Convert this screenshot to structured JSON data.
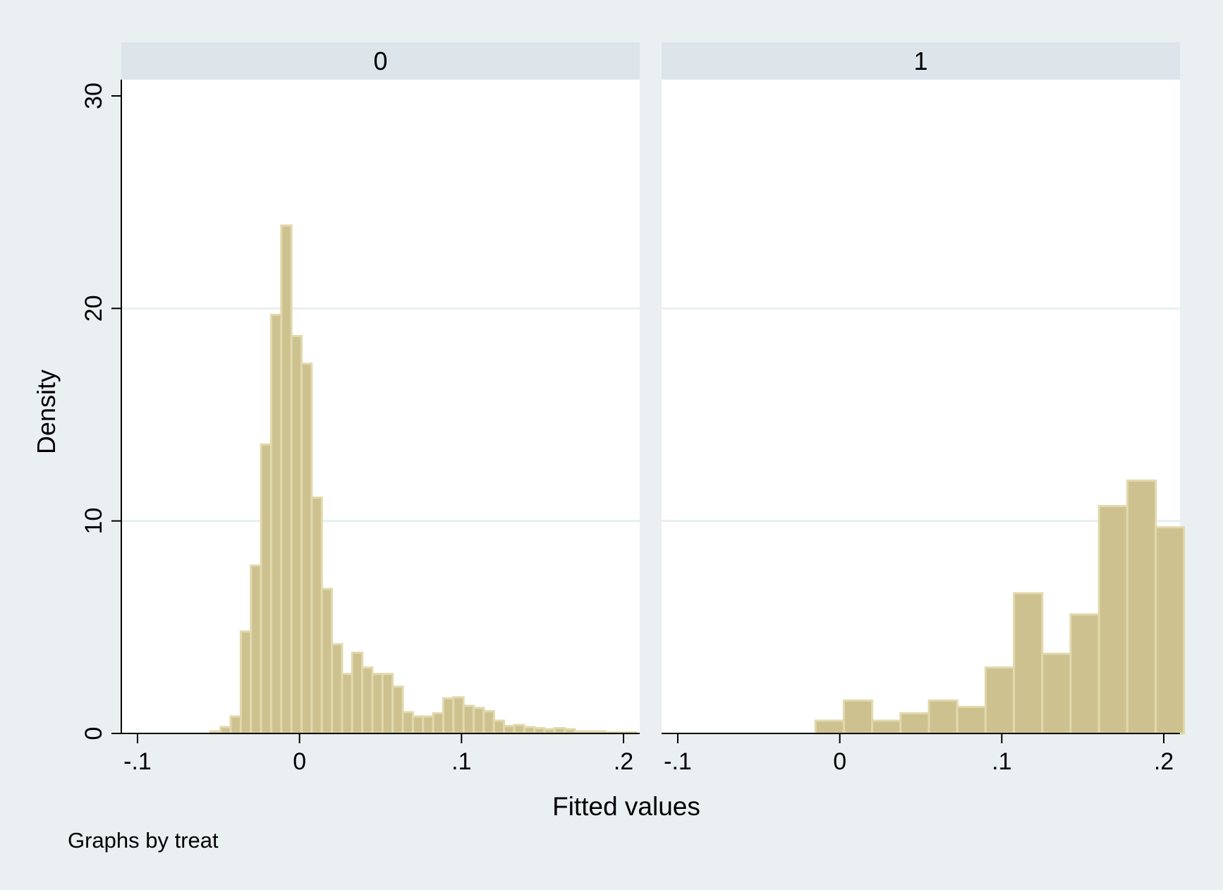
{
  "chart_data": {
    "type": "bar",
    "kind": "histogram",
    "by_variable_note": "Graphs by treat",
    "ylabel": "Density",
    "xlabel": "Fitted values",
    "ylim": [
      0,
      30
    ],
    "yticks": [
      0,
      10,
      20,
      30
    ],
    "ytick_labels": [
      "0",
      "10",
      "20",
      "30"
    ],
    "xlim": [
      -0.11,
      0.21
    ],
    "xticks": [
      -0.1,
      0,
      0.1,
      0.2
    ],
    "xtick_labels": [
      "-.1",
      "0",
      ".1",
      ".2"
    ],
    "grid": "horizontal",
    "bar_color": "#cdc28f",
    "bar_edge_color": "#e1d9ad",
    "panels": [
      {
        "title": "0",
        "bin_start": -0.055,
        "bin_width": 0.00625,
        "values": [
          0.1,
          0.3,
          0.8,
          4.8,
          7.9,
          13.6,
          19.7,
          23.9,
          18.7,
          17.4,
          11.1,
          6.8,
          4.2,
          2.8,
          3.8,
          3.1,
          2.8,
          2.8,
          2.2,
          1.0,
          0.8,
          0.8,
          0.95,
          1.65,
          1.7,
          1.3,
          1.2,
          1.05,
          0.6,
          0.35,
          0.4,
          0.3,
          0.25,
          0.2,
          0.25,
          0.2,
          0.1,
          0.1,
          0.1,
          0.05,
          0.05,
          0.05
        ]
      },
      {
        "title": "1",
        "bin_start": -0.015,
        "bin_width": 0.0175,
        "values": [
          0.6,
          1.55,
          0.6,
          0.95,
          1.55,
          1.25,
          3.1,
          6.6,
          3.75,
          5.6,
          10.7,
          11.9,
          9.7
        ]
      }
    ]
  }
}
